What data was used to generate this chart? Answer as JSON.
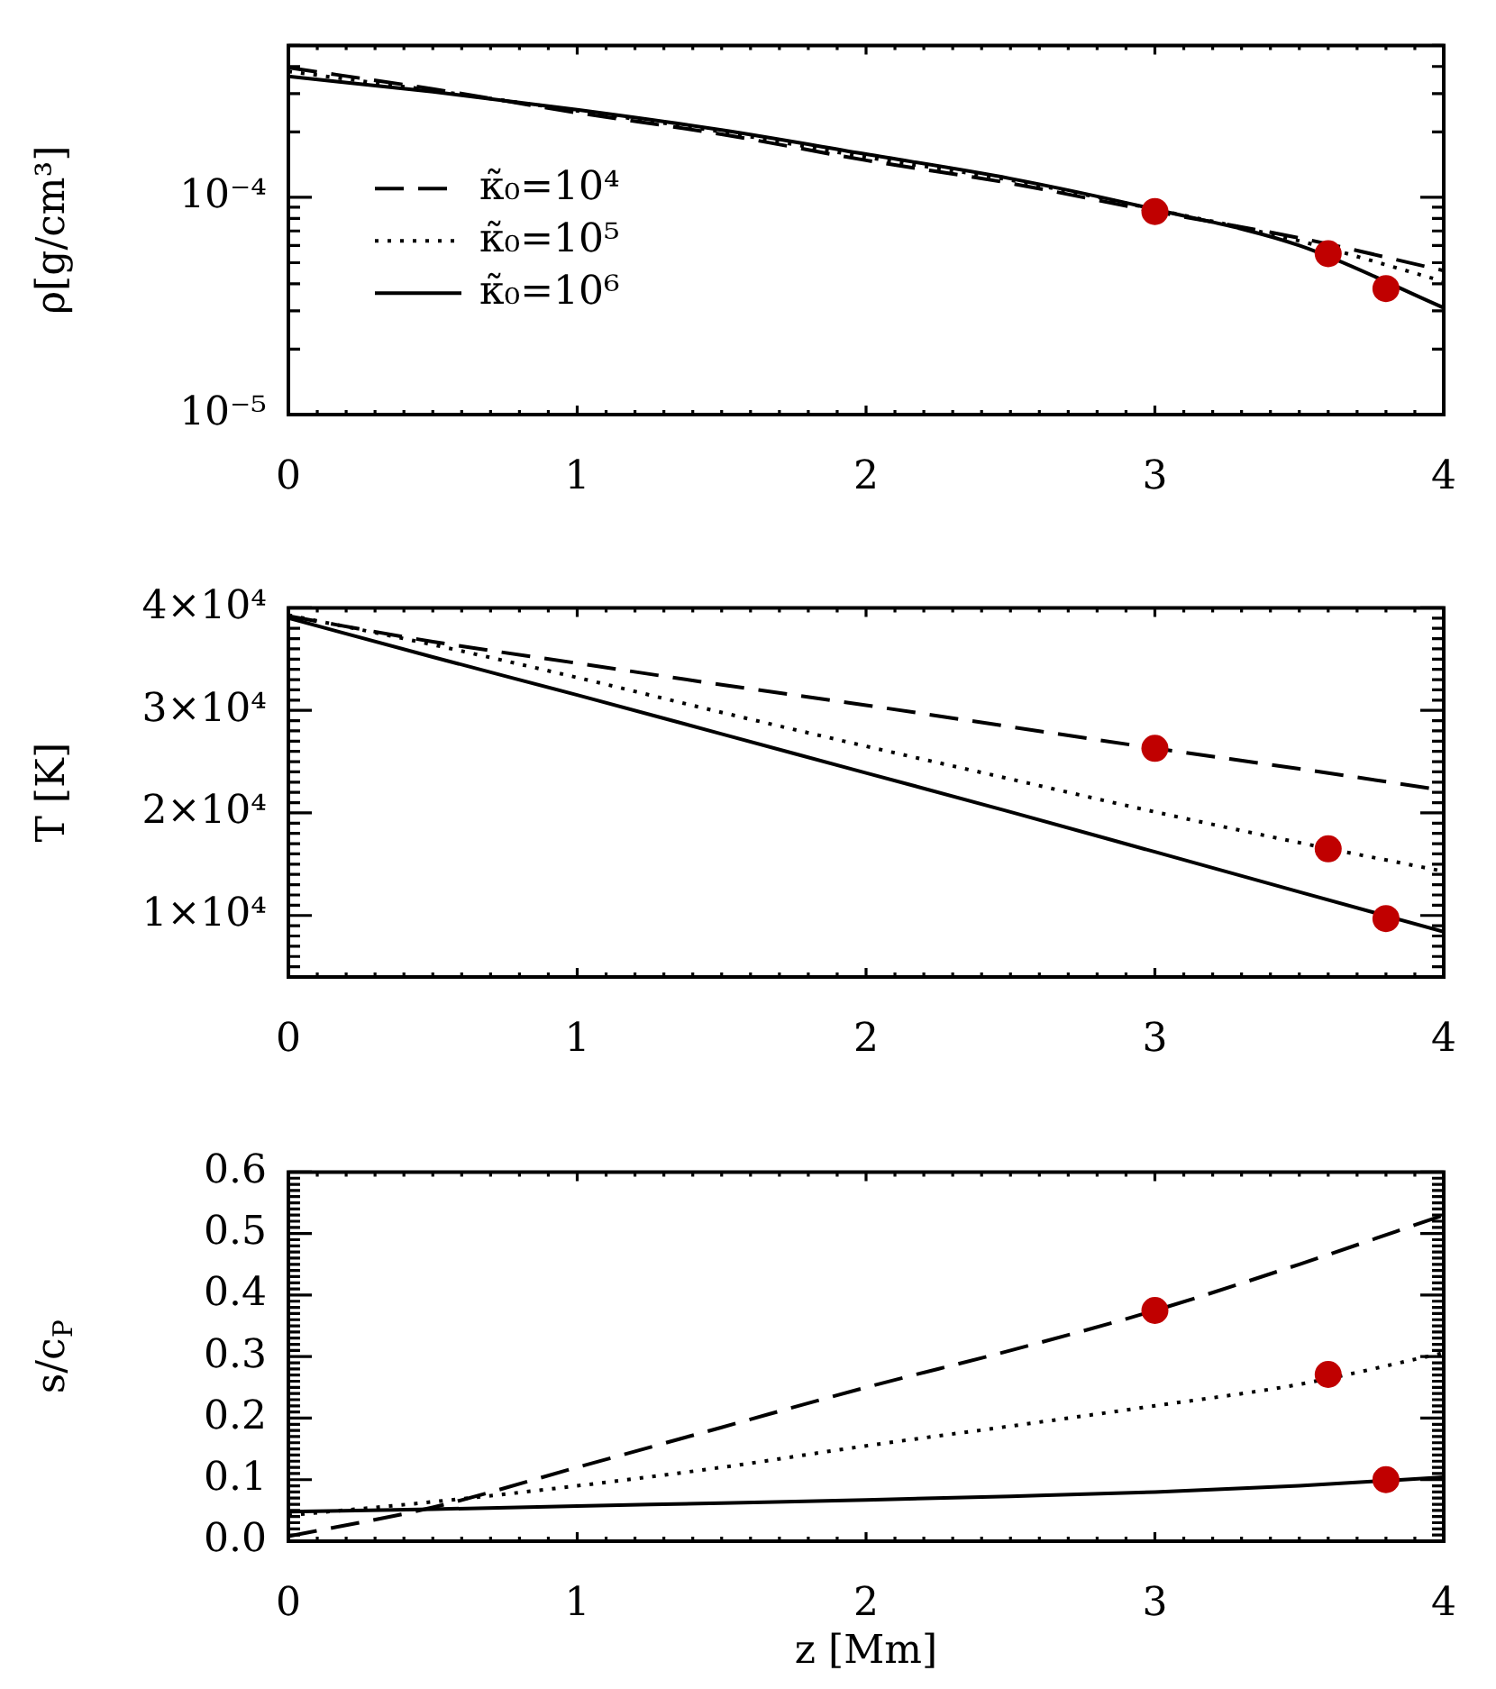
{
  "chart_data": [
    {
      "type": "line",
      "ylabel": "ρ[g/cm³]",
      "legend": "left",
      "log": "y",
      "x": [
        0,
        0.5,
        1,
        1.5,
        2,
        2.5,
        3,
        3.5,
        4
      ],
      "series": [
        {
          "name": "κ̃₀=10⁴",
          "color": "#000000",
          "line_style": "dashed",
          "values": [
            0.000395,
            0.000315,
            0.000245,
            0.000195,
            0.000148,
            0.000116,
            8.6e-05,
            6.5e-05,
            4.6e-05
          ]
        },
        {
          "name": "κ̃₀=10⁵",
          "color": "#000000",
          "line_style": "dotted",
          "values": [
            0.00038,
            0.00031,
            0.00025,
            0.0002,
            0.000153,
            0.00012,
            8.8e-05,
            6.3e-05,
            4.1e-05
          ]
        },
        {
          "name": "κ̃₀=10⁶",
          "color": "#000000",
          "line_style": "solid",
          "values": [
            0.00036,
            0.000306,
            0.000253,
            0.000204,
            0.000158,
            0.000122,
            8.8e-05,
            6e-05,
            3.1e-05
          ]
        },
        {
          "type": "scatter",
          "x": [
            3,
            3.6,
            3.8
          ],
          "color": "#c00000",
          "marker": "circle",
          "values": [
            8.6e-05,
            5.5e-05,
            3.8e-05
          ]
        }
      ],
      "xlim": [
        0,
        4
      ],
      "xticks": [
        0,
        {
          "value": 0.1,
          "label": null
        },
        {
          "value": 0.2,
          "label": null
        },
        {
          "value": 0.3,
          "label": null
        },
        {
          "value": 0.4,
          "label": null
        },
        {
          "value": 0.5,
          "label": null
        },
        {
          "value": 0.6,
          "label": null
        },
        {
          "value": 0.7,
          "label": null
        },
        {
          "value": 0.8,
          "label": null
        },
        {
          "value": 0.9,
          "label": null
        },
        1,
        {
          "value": 1.1,
          "label": null
        },
        {
          "value": 1.2,
          "label": null
        },
        {
          "value": 1.3,
          "label": null
        },
        {
          "value": 1.4,
          "label": null
        },
        {
          "value": 1.5,
          "label": null
        },
        {
          "value": 1.6,
          "label": null
        },
        {
          "value": 1.7,
          "label": null
        },
        {
          "value": 1.8,
          "label": null
        },
        {
          "value": 1.9,
          "label": null
        },
        2,
        {
          "value": 2.1,
          "label": null
        },
        {
          "value": 2.2,
          "label": null
        },
        {
          "value": 2.3,
          "label": null
        },
        {
          "value": 2.4,
          "label": null
        },
        {
          "value": 2.5,
          "label": null
        },
        {
          "value": 2.6,
          "label": null
        },
        {
          "value": 2.7,
          "label": null
        },
        {
          "value": 2.8,
          "label": null
        },
        {
          "value": 2.9,
          "label": null
        },
        3,
        {
          "value": 3.1,
          "label": null
        },
        {
          "value": 3.2,
          "label": null
        },
        {
          "value": 3.3,
          "label": null
        },
        {
          "value": 3.4,
          "label": null
        },
        {
          "value": 3.5,
          "label": null
        },
        {
          "value": 3.6,
          "label": null
        },
        {
          "value": 3.7,
          "label": null
        },
        {
          "value": 3.8,
          "label": null
        },
        {
          "value": 3.9,
          "label": null
        },
        4
      ],
      "ylim": [
        1e-05,
        0.0005
      ],
      "yticks": [
        {
          "value": 1e-05,
          "label": "10⁻⁵"
        },
        {
          "value": 2e-05,
          "label": null
        },
        {
          "value": 3e-05,
          "label": null
        },
        {
          "value": 4e-05,
          "label": null
        },
        {
          "value": 5e-05,
          "label": null
        },
        {
          "value": 6e-05,
          "label": null
        },
        {
          "value": 7e-05,
          "label": null
        },
        {
          "value": 8e-05,
          "label": null
        },
        {
          "value": 9e-05,
          "label": null
        },
        {
          "value": 0.0001,
          "label": "10⁻⁴"
        },
        {
          "value": 0.0002,
          "label": null
        },
        {
          "value": 0.0003,
          "label": null
        },
        {
          "value": 0.0004,
          "label": null
        },
        {
          "value": 0.0005,
          "label": null
        }
      ]
    },
    {
      "type": "line",
      "ylabel": "T [K]",
      "x": [
        0,
        0.5,
        1,
        1.5,
        2,
        2.5,
        3,
        3.5,
        4
      ],
      "series": [
        {
          "color": "#000000",
          "line_style": "dashed",
          "values": [
            39200,
            36700,
            34600,
            32500,
            30500,
            28400,
            26300,
            24300,
            22200
          ]
        },
        {
          "color": "#000000",
          "line_style": "dotted",
          "values": [
            39300,
            36400,
            33200,
            29800,
            26500,
            23300,
            20100,
            17100,
            14300
          ]
        },
        {
          "color": "#000000",
          "line_style": "solid",
          "values": [
            39000,
            35200,
            31500,
            27700,
            23900,
            20100,
            16200,
            12300,
            8400
          ]
        },
        {
          "type": "scatter",
          "x": [
            3,
            3.6,
            3.8
          ],
          "color": "#c00000",
          "marker": "circle",
          "values": [
            26300,
            16500,
            9700
          ]
        }
      ],
      "xlim": [
        0,
        4
      ],
      "xticks": [
        0,
        {
          "value": 0.1,
          "label": null
        },
        {
          "value": 0.2,
          "label": null
        },
        {
          "value": 0.3,
          "label": null
        },
        {
          "value": 0.4,
          "label": null
        },
        {
          "value": 0.5,
          "label": null
        },
        {
          "value": 0.6,
          "label": null
        },
        {
          "value": 0.7,
          "label": null
        },
        {
          "value": 0.8,
          "label": null
        },
        {
          "value": 0.9,
          "label": null
        },
        1,
        {
          "value": 1.1,
          "label": null
        },
        {
          "value": 1.2,
          "label": null
        },
        {
          "value": 1.3,
          "label": null
        },
        {
          "value": 1.4,
          "label": null
        },
        {
          "value": 1.5,
          "label": null
        },
        {
          "value": 1.6,
          "label": null
        },
        {
          "value": 1.7,
          "label": null
        },
        {
          "value": 1.8,
          "label": null
        },
        {
          "value": 1.9,
          "label": null
        },
        2,
        {
          "value": 2.1,
          "label": null
        },
        {
          "value": 2.2,
          "label": null
        },
        {
          "value": 2.3,
          "label": null
        },
        {
          "value": 2.4,
          "label": null
        },
        {
          "value": 2.5,
          "label": null
        },
        {
          "value": 2.6,
          "label": null
        },
        {
          "value": 2.7,
          "label": null
        },
        {
          "value": 2.8,
          "label": null
        },
        {
          "value": 2.9,
          "label": null
        },
        3,
        {
          "value": 3.1,
          "label": null
        },
        {
          "value": 3.2,
          "label": null
        },
        {
          "value": 3.3,
          "label": null
        },
        {
          "value": 3.4,
          "label": null
        },
        {
          "value": 3.5,
          "label": null
        },
        {
          "value": 3.6,
          "label": null
        },
        {
          "value": 3.7,
          "label": null
        },
        {
          "value": 3.8,
          "label": null
        },
        {
          "value": 3.9,
          "label": null
        },
        4
      ],
      "ylim": [
        4000,
        40000
      ],
      "yticks": [
        {
          "value": 4000,
          "label": null
        },
        {
          "value": 5000,
          "label": null
        },
        {
          "value": 6000,
          "label": null
        },
        {
          "value": 7000,
          "label": null
        },
        {
          "value": 8000,
          "label": null
        },
        {
          "value": 9000,
          "label": null
        },
        {
          "value": 10000,
          "label": "1×10⁴"
        },
        {
          "value": 11000,
          "label": null
        },
        {
          "value": 12000,
          "label": null
        },
        {
          "value": 13000,
          "label": null
        },
        {
          "value": 14000,
          "label": null
        },
        {
          "value": 15000,
          "label": null
        },
        {
          "value": 16000,
          "label": null
        },
        {
          "value": 17000,
          "label": null
        },
        {
          "value": 18000,
          "label": null
        },
        {
          "value": 19000,
          "label": null
        },
        {
          "value": 20000,
          "label": "2×10⁴"
        },
        {
          "value": 21000,
          "label": null
        },
        {
          "value": 22000,
          "label": null
        },
        {
          "value": 23000,
          "label": null
        },
        {
          "value": 24000,
          "label": null
        },
        {
          "value": 25000,
          "label": null
        },
        {
          "value": 26000,
          "label": null
        },
        {
          "value": 27000,
          "label": null
        },
        {
          "value": 28000,
          "label": null
        },
        {
          "value": 29000,
          "label": null
        },
        {
          "value": 30000,
          "label": "3×10⁴"
        },
        {
          "value": 31000,
          "label": null
        },
        {
          "value": 32000,
          "label": null
        },
        {
          "value": 33000,
          "label": null
        },
        {
          "value": 34000,
          "label": null
        },
        {
          "value": 35000,
          "label": null
        },
        {
          "value": 36000,
          "label": null
        },
        {
          "value": 37000,
          "label": null
        },
        {
          "value": 38000,
          "label": null
        },
        {
          "value": 39000,
          "label": null
        },
        {
          "value": 40000,
          "label": "4×10⁴"
        }
      ]
    },
    {
      "type": "line",
      "ylabel": "s/c$_{P}$",
      "xlabel": "z [Mm]",
      "x": [
        0,
        0.5,
        1,
        1.5,
        2,
        2.5,
        3,
        3.5,
        4
      ],
      "series": [
        {
          "color": "#000000",
          "line_style": "dashed",
          "values": [
            0.008,
            0.055,
            0.12,
            0.185,
            0.25,
            0.31,
            0.375,
            0.45,
            0.53
          ]
        },
        {
          "color": "#000000",
          "line_style": "dotted",
          "values": [
            0.042,
            0.064,
            0.09,
            0.12,
            0.155,
            0.187,
            0.22,
            0.255,
            0.306
          ]
        },
        {
          "color": "#000000",
          "line_style": "solid",
          "values": [
            0.048,
            0.052,
            0.057,
            0.062,
            0.067,
            0.073,
            0.08,
            0.09,
            0.104
          ]
        },
        {
          "type": "scatter",
          "x": [
            3,
            3.6,
            3.8
          ],
          "color": "#c00000",
          "marker": "circle",
          "values": [
            0.375,
            0.271,
            0.1
          ]
        }
      ],
      "xlim": [
        0,
        4
      ],
      "xticks": [
        0,
        {
          "value": 0.1,
          "label": null
        },
        {
          "value": 0.2,
          "label": null
        },
        {
          "value": 0.3,
          "label": null
        },
        {
          "value": 0.4,
          "label": null
        },
        {
          "value": 0.5,
          "label": null
        },
        {
          "value": 0.6,
          "label": null
        },
        {
          "value": 0.7,
          "label": null
        },
        {
          "value": 0.8,
          "label": null
        },
        {
          "value": 0.9,
          "label": null
        },
        1,
        {
          "value": 1.1,
          "label": null
        },
        {
          "value": 1.2,
          "label": null
        },
        {
          "value": 1.3,
          "label": null
        },
        {
          "value": 1.4,
          "label": null
        },
        {
          "value": 1.5,
          "label": null
        },
        {
          "value": 1.6,
          "label": null
        },
        {
          "value": 1.7,
          "label": null
        },
        {
          "value": 1.8,
          "label": null
        },
        {
          "value": 1.9,
          "label": null
        },
        2,
        {
          "value": 2.1,
          "label": null
        },
        {
          "value": 2.2,
          "label": null
        },
        {
          "value": 2.3,
          "label": null
        },
        {
          "value": 2.4,
          "label": null
        },
        {
          "value": 2.5,
          "label": null
        },
        {
          "value": 2.6,
          "label": null
        },
        {
          "value": 2.7,
          "label": null
        },
        {
          "value": 2.8,
          "label": null
        },
        {
          "value": 2.9,
          "label": null
        },
        3,
        {
          "value": 3.1,
          "label": null
        },
        {
          "value": 3.2,
          "label": null
        },
        {
          "value": 3.3,
          "label": null
        },
        {
          "value": 3.4,
          "label": null
        },
        {
          "value": 3.5,
          "label": null
        },
        {
          "value": 3.6,
          "label": null
        },
        {
          "value": 3.7,
          "label": null
        },
        {
          "value": 3.8,
          "label": null
        },
        {
          "value": 3.9,
          "label": null
        },
        4
      ],
      "ylim": [
        0,
        0.6
      ],
      "yticks": [
        {
          "value": 0,
          "label": "0.0"
        },
        {
          "value": 0.01,
          "label": null
        },
        {
          "value": 0.02,
          "label": null
        },
        {
          "value": 0.03,
          "label": null
        },
        {
          "value": 0.04,
          "label": null
        },
        {
          "value": 0.05,
          "label": null
        },
        {
          "value": 0.06,
          "label": null
        },
        {
          "value": 0.07,
          "label": null
        },
        {
          "value": 0.08,
          "label": null
        },
        {
          "value": 0.09,
          "label": null
        },
        0.1,
        {
          "value": 0.11,
          "label": null
        },
        {
          "value": 0.12,
          "label": null
        },
        {
          "value": 0.13,
          "label": null
        },
        {
          "value": 0.14,
          "label": null
        },
        {
          "value": 0.15,
          "label": null
        },
        {
          "value": 0.16,
          "label": null
        },
        {
          "value": 0.17,
          "label": null
        },
        {
          "value": 0.18,
          "label": null
        },
        {
          "value": 0.19,
          "label": null
        },
        0.2,
        {
          "value": 0.21,
          "label": null
        },
        {
          "value": 0.22,
          "label": null
        },
        {
          "value": 0.23,
          "label": null
        },
        {
          "value": 0.24,
          "label": null
        },
        {
          "value": 0.25,
          "label": null
        },
        {
          "value": 0.26,
          "label": null
        },
        {
          "value": 0.27,
          "label": null
        },
        {
          "value": 0.28,
          "label": null
        },
        {
          "value": 0.29,
          "label": null
        },
        0.3,
        {
          "value": 0.31,
          "label": null
        },
        {
          "value": 0.32,
          "label": null
        },
        {
          "value": 0.33,
          "label": null
        },
        {
          "value": 0.34,
          "label": null
        },
        {
          "value": 0.35,
          "label": null
        },
        {
          "value": 0.36,
          "label": null
        },
        {
          "value": 0.37,
          "label": null
        },
        {
          "value": 0.38,
          "label": null
        },
        {
          "value": 0.39,
          "label": null
        },
        0.4,
        {
          "value": 0.41,
          "label": null
        },
        {
          "value": 0.42,
          "label": null
        },
        {
          "value": 0.43,
          "label": null
        },
        {
          "value": 0.44,
          "label": null
        },
        {
          "value": 0.45,
          "label": null
        },
        {
          "value": 0.46,
          "label": null
        },
        {
          "value": 0.47,
          "label": null
        },
        {
          "value": 0.48,
          "label": null
        },
        {
          "value": 0.49,
          "label": null
        },
        0.5,
        {
          "value": 0.51,
          "label": null
        },
        {
          "value": 0.52,
          "label": null
        },
        {
          "value": 0.53,
          "label": null
        },
        {
          "value": 0.54,
          "label": null
        },
        {
          "value": 0.55,
          "label": null
        },
        {
          "value": 0.56,
          "label": null
        },
        {
          "value": 0.57,
          "label": null
        },
        {
          "value": 0.58,
          "label": null
        },
        {
          "value": 0.59,
          "label": null
        },
        0.6
      ]
    }
  ]
}
